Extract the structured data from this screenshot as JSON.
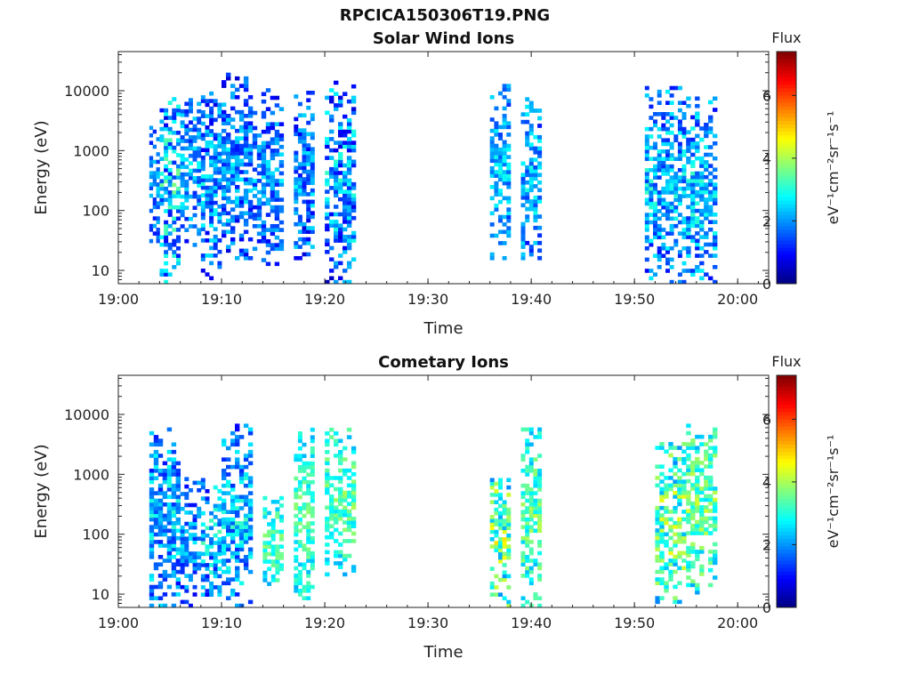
{
  "figure": {
    "title": "RPCICA150306T19.PNG"
  },
  "colorbar": {
    "label": "Flux",
    "ticks": [
      "0",
      "2",
      "4",
      "6"
    ],
    "range": [
      0,
      7.4
    ],
    "colormap": "jet"
  },
  "chart_data": [
    {
      "type": "heatmap",
      "title": "Solar Wind Ions",
      "xlabel": "Time",
      "ylabel": "Energy (eV)",
      "xlim": [
        "19:00",
        "20:03"
      ],
      "ylim": [
        6,
        45000
      ],
      "y_scale": "log",
      "x_ticks": [
        "19:00",
        "19:10",
        "19:20",
        "19:30",
        "19:40",
        "19:50",
        "20:00"
      ],
      "y_ticks": [
        "10",
        "100",
        "1000",
        "10000"
      ],
      "colorbar_label": "Flux",
      "colorbar_units": "eV⁻¹cm⁻²sr⁻¹s⁻¹",
      "colorbar_range": [
        0,
        7.4
      ],
      "blocks": [
        {
          "t0": "19:03",
          "t1": "19:04",
          "e_low": 25,
          "e_high": 3000,
          "flux_mean": 2.0,
          "flux_max": 2.8
        },
        {
          "t0": "19:04",
          "t1": "19:06",
          "e_low": 6,
          "e_high": 12000,
          "flux_mean": 2.4,
          "flux_max": 4.0
        },
        {
          "t0": "19:06",
          "t1": "19:08",
          "e_low": 25,
          "e_high": 10000,
          "flux_mean": 2.2,
          "flux_max": 3.2
        },
        {
          "t0": "19:08",
          "t1": "19:10",
          "e_low": 6,
          "e_high": 15000,
          "flux_mean": 2.1,
          "flux_max": 3.3
        },
        {
          "t0": "19:10",
          "t1": "19:13",
          "e_low": 15,
          "e_high": 20000,
          "flux_mean": 2.0,
          "flux_max": 3.1
        },
        {
          "t0": "19:13",
          "t1": "19:16",
          "e_low": 12,
          "e_high": 11000,
          "flux_mean": 2.0,
          "flux_max": 3.0
        },
        {
          "t0": "19:17",
          "t1": "19:19",
          "e_low": 15,
          "e_high": 10000,
          "flux_mean": 2.0,
          "flux_max": 3.2
        },
        {
          "t0": "19:20",
          "t1": "19:23",
          "e_low": 6,
          "e_high": 17000,
          "flux_mean": 2.1,
          "flux_max": 3.6
        },
        {
          "t0": "19:36",
          "t1": "19:38",
          "e_low": 15,
          "e_high": 13000,
          "flux_mean": 2.3,
          "flux_max": 3.2
        },
        {
          "t0": "19:39",
          "t1": "19:41",
          "e_low": 15,
          "e_high": 9000,
          "flux_mean": 2.3,
          "flux_max": 3.4
        },
        {
          "t0": "19:51",
          "t1": "19:55",
          "e_low": 6,
          "e_high": 12000,
          "flux_mean": 2.3,
          "flux_max": 3.5
        },
        {
          "t0": "19:55",
          "t1": "19:58",
          "e_low": 6,
          "e_high": 8000,
          "flux_mean": 2.4,
          "flux_max": 3.6
        }
      ]
    },
    {
      "type": "heatmap",
      "title": "Cometary Ions",
      "xlabel": "Time",
      "ylabel": "Energy (eV)",
      "xlim": [
        "19:00",
        "20:03"
      ],
      "ylim": [
        6,
        45000
      ],
      "y_scale": "log",
      "x_ticks": [
        "19:00",
        "19:10",
        "19:20",
        "19:30",
        "19:40",
        "19:50",
        "20:00"
      ],
      "y_ticks": [
        "10",
        "100",
        "1000",
        "10000"
      ],
      "colorbar_label": "Flux",
      "colorbar_units": "eV⁻¹cm⁻²sr⁻¹s⁻¹",
      "colorbar_range": [
        0,
        7.4
      ],
      "blocks": [
        {
          "t0": "19:03",
          "t1": "19:06",
          "e_low": 6,
          "e_high": 7000,
          "flux_mean": 2.3,
          "flux_max": 3.5
        },
        {
          "t0": "19:06",
          "t1": "19:08",
          "e_low": 6,
          "e_high": 900,
          "flux_mean": 2.0,
          "flux_max": 3.0
        },
        {
          "t0": "19:08",
          "t1": "19:10",
          "e_low": 6,
          "e_high": 1000,
          "flux_mean": 2.4,
          "flux_max": 3.8
        },
        {
          "t0": "19:10",
          "t1": "19:13",
          "e_low": 6,
          "e_high": 7000,
          "flux_mean": 2.4,
          "flux_max": 3.6
        },
        {
          "t0": "19:14",
          "t1": "19:16",
          "e_low": 12,
          "e_high": 500,
          "flux_mean": 3.3,
          "flux_max": 4.1
        },
        {
          "t0": "19:17",
          "t1": "19:19",
          "e_low": 8,
          "e_high": 6000,
          "flux_mean": 3.3,
          "flux_max": 4.1
        },
        {
          "t0": "19:20",
          "t1": "19:23",
          "e_low": 20,
          "e_high": 6000,
          "flux_mean": 3.4,
          "flux_max": 4.3
        },
        {
          "t0": "19:36",
          "t1": "19:38",
          "e_low": 6,
          "e_high": 1000,
          "flux_mean": 3.6,
          "flux_max": 5.2
        },
        {
          "t0": "19:39",
          "t1": "19:41",
          "e_low": 6,
          "e_high": 7000,
          "flux_mean": 3.4,
          "flux_max": 4.4
        },
        {
          "t0": "19:52",
          "t1": "19:55",
          "e_low": 6,
          "e_high": 4000,
          "flux_mean": 3.5,
          "flux_max": 5.0
        },
        {
          "t0": "19:55",
          "t1": "19:58",
          "e_low": 10,
          "e_high": 7000,
          "flux_mean": 3.5,
          "flux_max": 4.6
        }
      ]
    }
  ]
}
